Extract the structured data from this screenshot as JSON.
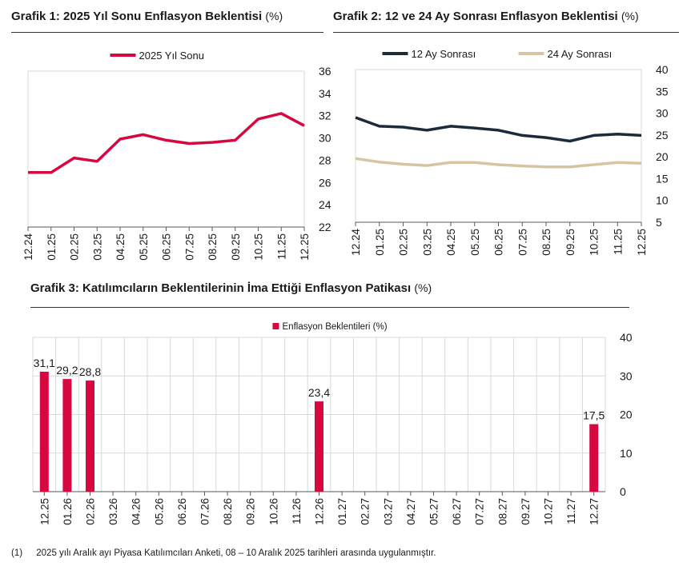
{
  "colors": {
    "red": "#d6083f",
    "navy": "#1c2b39",
    "beige": "#d7c4a3",
    "grid": "#d9d9d9",
    "axis": "#595959"
  },
  "grafik1": {
    "title": "Grafik 1: 2025 Yıl Sonu Enflasyon Beklentisi",
    "unit": "(%)"
  },
  "grafik2": {
    "title": "Grafik 2: 12 ve 24 Ay Sonrası Enflasyon Beklentisi",
    "unit": "(%)"
  },
  "grafik3": {
    "title": "Grafik 3: Katılımcıların Beklentilerinin İma Ettiği Enflasyon Patikası",
    "unit": "(%)"
  },
  "footnote": {
    "num": "(1)",
    "text": "2025 yılı Aralık ayı Piyasa Katılımcıları Anketi, 08 – 10 Aralık 2025 tarihleri arasında uygulanmıştır."
  },
  "chart_data": [
    {
      "type": "line",
      "title": "Grafik 1: 2025 Yıl Sonu Enflasyon Beklentisi (%)",
      "categories": [
        "12.24",
        "01.25",
        "02.25",
        "03.25",
        "04.25",
        "05.25",
        "06.25",
        "07.25",
        "08.25",
        "09.25",
        "10.25",
        "11.25",
        "12.25"
      ],
      "series": [
        {
          "name": "2025 Yıl Sonu",
          "color": "#d6083f",
          "values": [
            26.9,
            26.9,
            28.2,
            27.9,
            29.9,
            30.3,
            29.8,
            29.5,
            29.6,
            29.8,
            31.7,
            32.2,
            31.1
          ]
        }
      ],
      "ylim": [
        22,
        36
      ],
      "yticks": [
        22,
        24,
        26,
        28,
        30,
        32,
        34,
        36
      ],
      "y_axis_side": "right",
      "grid": false,
      "legend": "top-center"
    },
    {
      "type": "line",
      "title": "Grafik 2: 12 ve 24 Ay Sonrası Enflasyon Beklentisi (%)",
      "categories": [
        "12.24",
        "01.25",
        "02.25",
        "03.25",
        "04.25",
        "05.25",
        "06.25",
        "07.25",
        "08.25",
        "09.25",
        "10.25",
        "11.25",
        "12.25"
      ],
      "series": [
        {
          "name": "12 Ay Sonrası",
          "color": "#1c2b39",
          "values": [
            29.0,
            27.0,
            26.8,
            26.1,
            27.0,
            26.6,
            26.1,
            24.9,
            24.4,
            23.6,
            24.9,
            25.2,
            24.9
          ]
        },
        {
          "name": "24 Ay Sonrası",
          "color": "#d7c4a3",
          "values": [
            19.6,
            18.8,
            18.3,
            18.0,
            18.7,
            18.7,
            18.2,
            17.9,
            17.7,
            17.7,
            18.2,
            18.7,
            18.5
          ]
        }
      ],
      "ylim": [
        5,
        40
      ],
      "yticks": [
        5,
        10,
        15,
        20,
        25,
        30,
        35,
        40
      ],
      "y_axis_side": "right",
      "grid": false,
      "legend": "top-center"
    },
    {
      "type": "bar",
      "title": "Grafik 3: Katılımcıların Beklentilerinin İma Ettiği Enflasyon Patikası (%)",
      "categories": [
        "12.25",
        "01.26",
        "02.26",
        "03.26",
        "04.26",
        "05.26",
        "06.26",
        "07.26",
        "08.26",
        "09.26",
        "10.26",
        "11.26",
        "12.26",
        "01.27",
        "02.27",
        "03.27",
        "04.27",
        "05.27",
        "06.27",
        "07.27",
        "08.27",
        "09.27",
        "10.27",
        "11.27",
        "12.27"
      ],
      "series": [
        {
          "name": "Enflasyon Beklentileri (%)",
          "color": "#d6083f",
          "values": [
            31.1,
            29.2,
            28.8,
            null,
            null,
            null,
            null,
            null,
            null,
            null,
            null,
            null,
            23.4,
            null,
            null,
            null,
            null,
            null,
            null,
            null,
            null,
            null,
            null,
            null,
            17.5
          ],
          "labels": [
            "31,1",
            "29,2",
            "28,8",
            "",
            "",
            "",
            "",
            "",
            "",
            "",
            "",
            "",
            "23,4",
            "",
            "",
            "",
            "",
            "",
            "",
            "",
            "",
            "",
            "",
            "",
            "17,5"
          ]
        }
      ],
      "ylim": [
        0,
        40
      ],
      "yticks": [
        0,
        10,
        20,
        30,
        40
      ],
      "y_axis_side": "right",
      "grid": true,
      "legend": "top-center"
    }
  ]
}
